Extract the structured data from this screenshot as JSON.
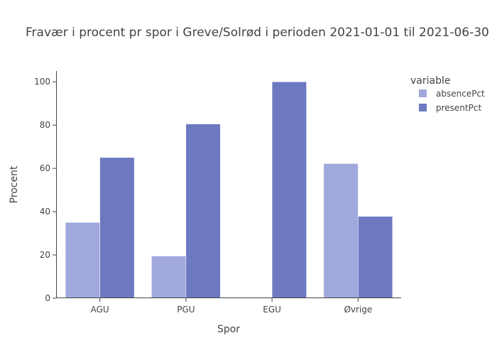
{
  "chart_data": {
    "type": "bar",
    "title": "Fravær i procent pr spor i Greve/Solrød i perioden 2021-01-01 til 2021-06-30",
    "xlabel": "Spor",
    "ylabel": "Procent",
    "categories": [
      "AGU",
      "PGU",
      "EGU",
      "Øvrige"
    ],
    "series": [
      {
        "name": "absencePct",
        "color": "#a0a8dc",
        "values": [
          35,
          19.5,
          0,
          62.2
        ]
      },
      {
        "name": "presentPct",
        "color": "#6c79c1",
        "values": [
          65,
          80.5,
          100,
          37.8
        ]
      }
    ],
    "ylim": [
      0,
      105
    ],
    "yticks": [
      0,
      20,
      40,
      60,
      80,
      100
    ],
    "legend": {
      "title": "variable",
      "position": "top-right"
    },
    "grid": false
  }
}
